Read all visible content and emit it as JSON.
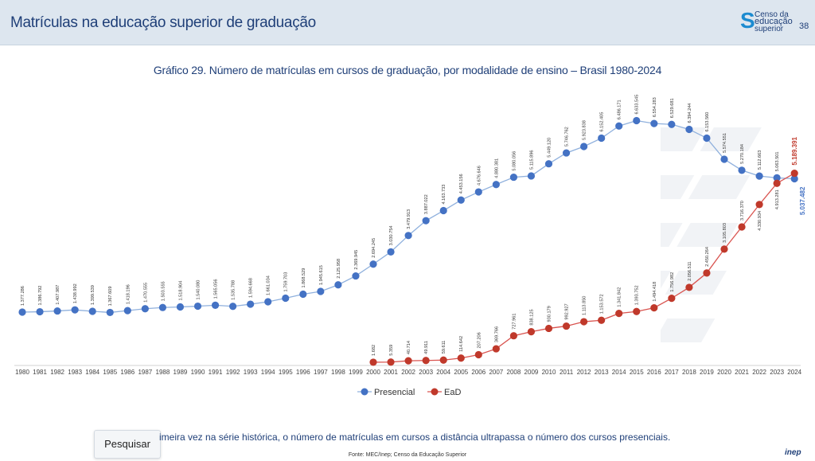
{
  "header": {
    "title": "Matrículas na educação superior de graduação",
    "page_number": "38",
    "logo": {
      "line1": "Censo da",
      "line2": "educação",
      "line3": "superior"
    }
  },
  "footer": {
    "note": "imeira vez na série histórica, o número de matrículas em cursos a distância ultrapassa o número dos cursos presenciais.",
    "search_label": "Pesquisar",
    "source": "Fonte: MEC/Inep; Censo da Educação Superior",
    "brand": "inep"
  },
  "colors": {
    "presencial": "#4472c4",
    "ead": "#c0392b",
    "presencial_line": "#8fb0dd",
    "title": "#1f3f78"
  },
  "chart_data": {
    "type": "line",
    "title": "Gráfico 29. Número de matrículas em cursos de graduação, por modalidade de ensino – Brasil 1980-2024",
    "xlabel": "",
    "ylabel": "",
    "ylim": [
      0,
      7000000
    ],
    "legend_position": "bottom-center",
    "grid": false,
    "x": [
      1980,
      1981,
      1982,
      1983,
      1984,
      1985,
      1986,
      1987,
      1988,
      1989,
      1990,
      1991,
      1992,
      1993,
      1994,
      1995,
      1996,
      1997,
      1998,
      1999,
      2000,
      2001,
      2002,
      2003,
      2004,
      2005,
      2006,
      2007,
      2008,
      2009,
      2010,
      2011,
      2012,
      2013,
      2014,
      2015,
      2016,
      2017,
      2018,
      2019,
      2020,
      2021,
      2022,
      2023,
      2024
    ],
    "series": [
      {
        "name": "Presencial",
        "values": [
          1377286,
          1386792,
          1407987,
          1438992,
          1399539,
          1367609,
          1418196,
          1470555,
          1503555,
          1518904,
          1540080,
          1565056,
          1535788,
          1594668,
          1661034,
          1759703,
          1868529,
          1945615,
          2125958,
          2369945,
          2694245,
          3030754,
          3479913,
          3887022,
          4163733,
          4453156,
          4676646,
          4880381,
          5080056,
          5115896,
          5449120,
          5746762,
          5923838,
          6152405,
          6486171,
          6633545,
          6554283,
          6529681,
          6394244,
          6153560,
          5574551,
          5270184,
          5112663,
          5063501,
          5037482
        ],
        "labels": [
          "1.377.286",
          "1.386.792",
          "1.407.987",
          "1.438.992",
          "1.399.539",
          "1.367.609",
          "1.418.196",
          "1.470.555",
          "1.503.555",
          "1.518.904",
          "1.540.080",
          "1.565.056",
          "1.535.788",
          "1.594.668",
          "1.661.034",
          "1.759.703",
          "1.868.529",
          "1.945.615",
          "2.125.958",
          "2.369.945",
          "2.694.245",
          "3.030.754",
          "3.479.913",
          "3.887.022",
          "4.163.733",
          "4.453.156",
          "4.676.646",
          "4.880.381",
          "5.080.056",
          "5.115.896",
          "5.449.120",
          "5.746.762",
          "5.923.838",
          "6.152.405",
          "6.486.171",
          "6.633.545",
          "6.554.283",
          "6.529.681",
          "6.394.244",
          "6.153.560",
          "5.574.551",
          "5.270.184",
          "5.112.663",
          "5.063.501",
          "5.037.482"
        ]
      },
      {
        "name": "EaD",
        "x": [
          2000,
          2001,
          2002,
          2003,
          2004,
          2005,
          2006,
          2007,
          2008,
          2009,
          2010,
          2011,
          2012,
          2013,
          2014,
          2015,
          2016,
          2017,
          2018,
          2019,
          2020,
          2021,
          2022,
          2023,
          2024
        ],
        "values": [
          1682,
          5359,
          40714,
          49911,
          59611,
          114642,
          207206,
          369766,
          727961,
          838125,
          930179,
          992927,
          1113850,
          1153572,
          1341842,
          1393752,
          1494418,
          1756982,
          2056511,
          2450264,
          3105803,
          3716370,
          4330934,
          4913281,
          5189391
        ],
        "labels": [
          "1.682",
          "5.359",
          "40.714",
          "49.911",
          "59.611",
          "114.642",
          "207.206",
          "369.766",
          "727.961",
          "838.125",
          "930.179",
          "992.927",
          "1.113.850",
          "1.153.572",
          "1.341.842",
          "1.393.752",
          "1.494.418",
          "1.756.982",
          "2.056.511",
          "2.450.264",
          "3.105.803",
          "3.716.370",
          "4.330.934",
          "4.913.281",
          "5.189.391"
        ]
      }
    ]
  }
}
